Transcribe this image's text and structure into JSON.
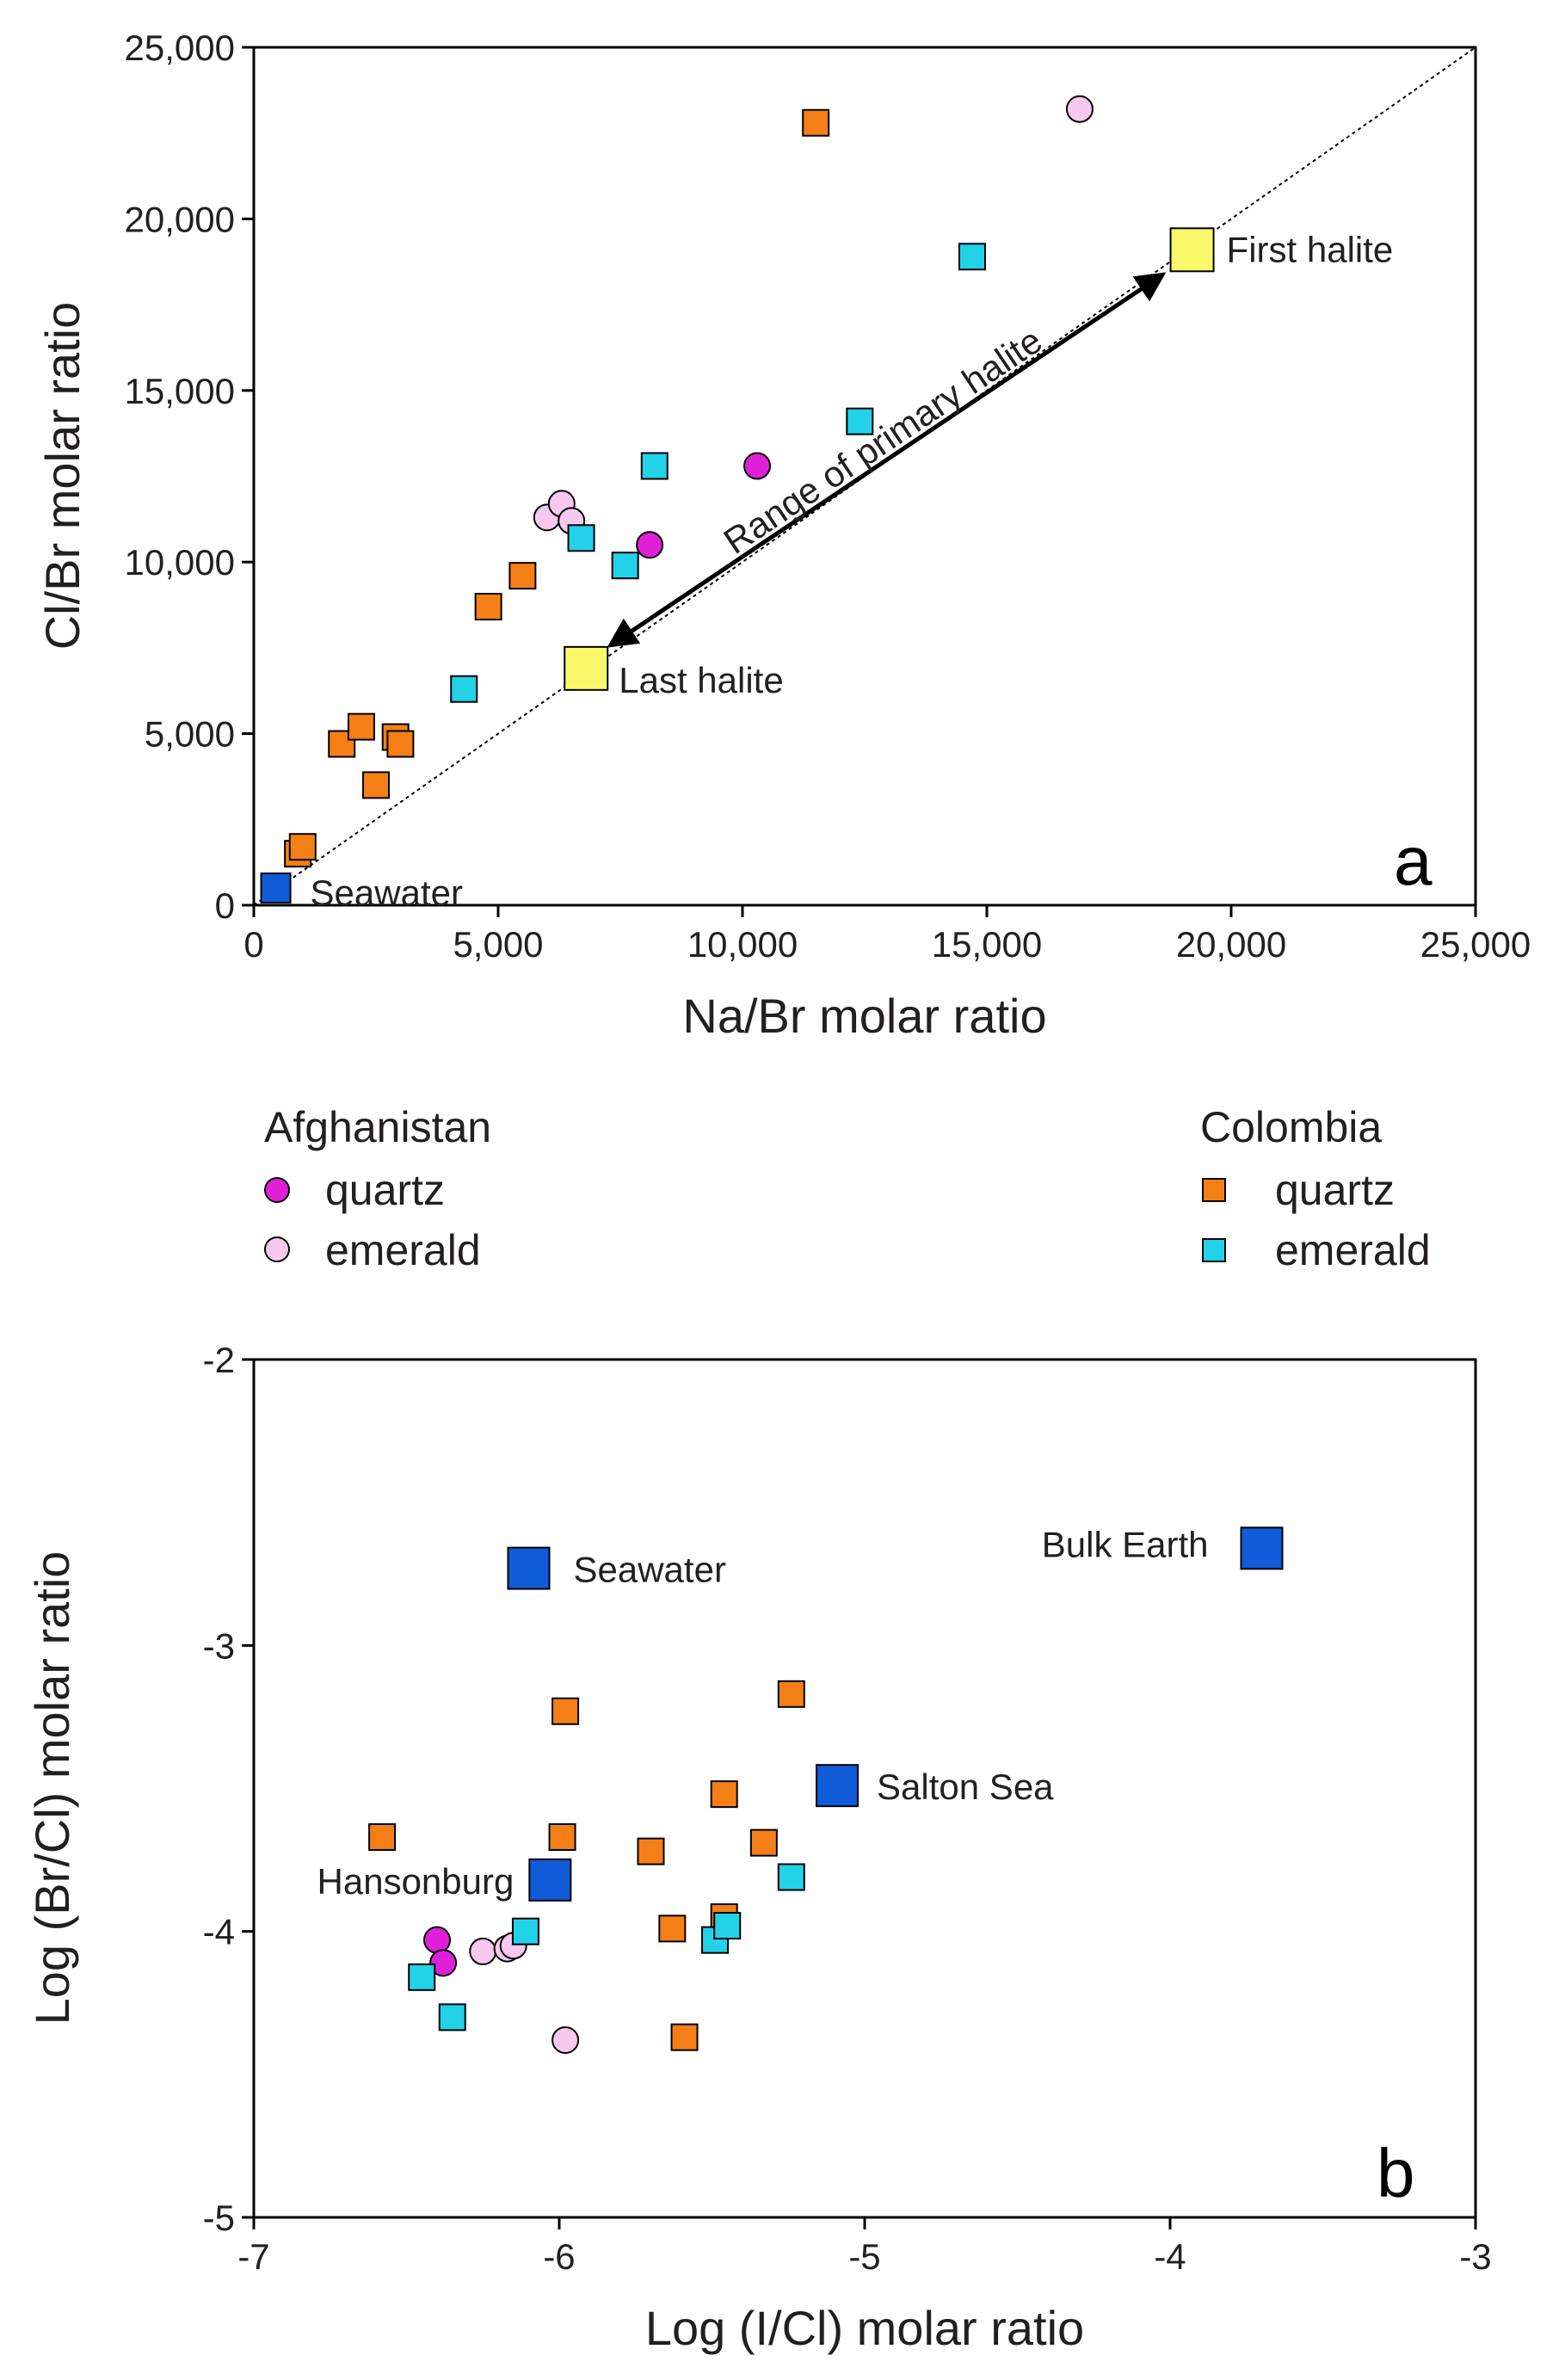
{
  "colors": {
    "afghanistan_quartz": "#e020d8",
    "afghanistan_emerald": "#f8c8ee",
    "colombia_quartz": "#f57f17",
    "colombia_emerald": "#22d2e8",
    "reference": "#0f5bd8",
    "halite": "#f8f86a"
  },
  "legend": {
    "afghanistan": {
      "title": "Afghanistan",
      "quartz": "quartz",
      "emerald": "emerald"
    },
    "colombia": {
      "title": "Colombia",
      "quartz": "quartz",
      "emerald": "emerald"
    }
  },
  "chart_data": [
    {
      "type": "scatter",
      "panel_label": "a",
      "xlabel": "Na/Br molar ratio",
      "ylabel": "Cl/Br molar ratio",
      "xlim": [
        0,
        25000
      ],
      "ylim": [
        0,
        25000
      ],
      "xticks": [
        "0",
        "5,000",
        "10,000",
        "15,000",
        "20,000",
        "25,000"
      ],
      "yticks": [
        "0",
        "5,000",
        "10,000",
        "15,000",
        "20,000",
        "25,000"
      ],
      "reference_line": {
        "style": "dotted",
        "x": [
          0,
          25000
        ],
        "y": [
          0,
          25000
        ]
      },
      "arrow_label": "Range of primary halite",
      "reference_points": [
        {
          "label": "Seawater",
          "x": 450,
          "y": 500,
          "marker": "square",
          "color": "reference"
        },
        {
          "label": "Last halite",
          "x": 6800,
          "y": 6900,
          "marker": "square",
          "color": "halite"
        },
        {
          "label": "First halite",
          "x": 19200,
          "y": 19100,
          "marker": "square",
          "color": "halite"
        }
      ],
      "series": [
        {
          "name": "Afghanistan quartz",
          "marker": "circle",
          "color": "afghanistan_quartz",
          "points": [
            [
              8100,
              10500
            ],
            [
              10300,
              12800
            ]
          ]
        },
        {
          "name": "Afghanistan emerald",
          "marker": "circle",
          "color": "afghanistan_emerald",
          "points": [
            [
              6000,
              11300
            ],
            [
              6300,
              11700
            ],
            [
              6500,
              11200
            ],
            [
              16900,
              23200
            ]
          ]
        },
        {
          "name": "Colombia quartz",
          "marker": "square",
          "color": "colombia_quartz",
          "points": [
            [
              900,
              1500
            ],
            [
              1000,
              1700
            ],
            [
              1800,
              4700
            ],
            [
              2200,
              5200
            ],
            [
              2500,
              3500
            ],
            [
              2900,
              4900
            ],
            [
              3000,
              4700
            ],
            [
              4800,
              8700
            ],
            [
              5500,
              9600
            ],
            [
              11500,
              22800
            ]
          ]
        },
        {
          "name": "Colombia emerald",
          "marker": "square",
          "color": "colombia_emerald",
          "points": [
            [
              4300,
              6300
            ],
            [
              6700,
              10700
            ],
            [
              7600,
              9900
            ],
            [
              8200,
              12800
            ],
            [
              12400,
              14100
            ],
            [
              14700,
              18900
            ]
          ]
        }
      ]
    },
    {
      "type": "scatter",
      "panel_label": "b",
      "xlabel": "Log (I/Cl) molar ratio",
      "ylabel": "Log (Br/Cl)  molar ratio",
      "xlim": [
        -7,
        -3
      ],
      "ylim": [
        -5,
        -2
      ],
      "xticks": [
        "-7",
        "-6",
        "-5",
        "-4",
        "-3"
      ],
      "yticks": [
        "-5",
        "-4",
        "-3",
        "-2"
      ],
      "reference_points": [
        {
          "label": "Seawater",
          "x": -6.1,
          "y": -2.73,
          "marker": "square",
          "color": "reference"
        },
        {
          "label": "Bulk Earth",
          "x": -3.7,
          "y": -2.66,
          "marker": "square",
          "color": "reference"
        },
        {
          "label": "Salton Sea",
          "x": -5.09,
          "y": -3.49,
          "marker": "square",
          "color": "reference"
        },
        {
          "label": "Hansonburg",
          "x": -6.03,
          "y": -3.82,
          "marker": "square",
          "color": "reference"
        }
      ],
      "series": [
        {
          "name": "Afghanistan quartz",
          "marker": "circle",
          "color": "afghanistan_quartz",
          "points": [
            [
              -6.4,
              -4.03
            ],
            [
              -6.38,
              -4.11
            ]
          ]
        },
        {
          "name": "Afghanistan emerald",
          "marker": "circle",
          "color": "afghanistan_emerald",
          "points": [
            [
              -6.25,
              -4.07
            ],
            [
              -6.17,
              -4.06
            ],
            [
              -6.15,
              -4.05
            ],
            [
              -5.98,
              -4.38
            ]
          ]
        },
        {
          "name": "Colombia quartz",
          "marker": "square",
          "color": "colombia_quartz",
          "points": [
            [
              -6.58,
              -3.67
            ],
            [
              -5.98,
              -3.23
            ],
            [
              -5.99,
              -3.67
            ],
            [
              -5.7,
              -3.72
            ],
            [
              -5.63,
              -3.99
            ],
            [
              -5.59,
              -4.37
            ],
            [
              -5.46,
              -3.52
            ],
            [
              -5.46,
              -3.95
            ],
            [
              -5.33,
              -3.69
            ],
            [
              -5.24,
              -3.17
            ]
          ]
        },
        {
          "name": "Colombia emerald",
          "marker": "square",
          "color": "colombia_emerald",
          "points": [
            [
              -6.45,
              -4.16
            ],
            [
              -6.35,
              -4.3
            ],
            [
              -6.11,
              -4.0
            ],
            [
              -5.49,
              -4.03
            ],
            [
              -5.45,
              -3.98
            ],
            [
              -5.24,
              -3.81
            ]
          ]
        }
      ]
    }
  ]
}
